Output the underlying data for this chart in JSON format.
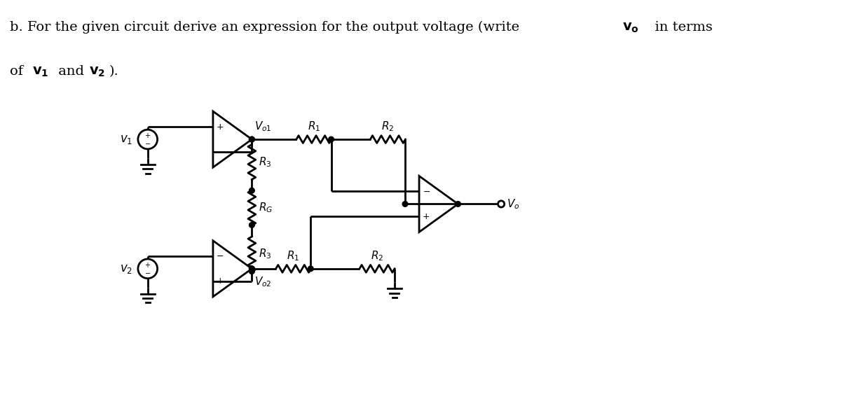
{
  "bg_color": "#ffffff",
  "line_color": "#000000",
  "title_text": "b. For the given circuit derive an expression for the output voltage (write ",
  "title_vo_bold": "v₀",
  "title_end": "  in terms",
  "title2_start": "of ",
  "title2_v1": "v₁",
  "title2_and": " and ",
  "title2_v2": "v₂",
  "title2_end": ")."
}
